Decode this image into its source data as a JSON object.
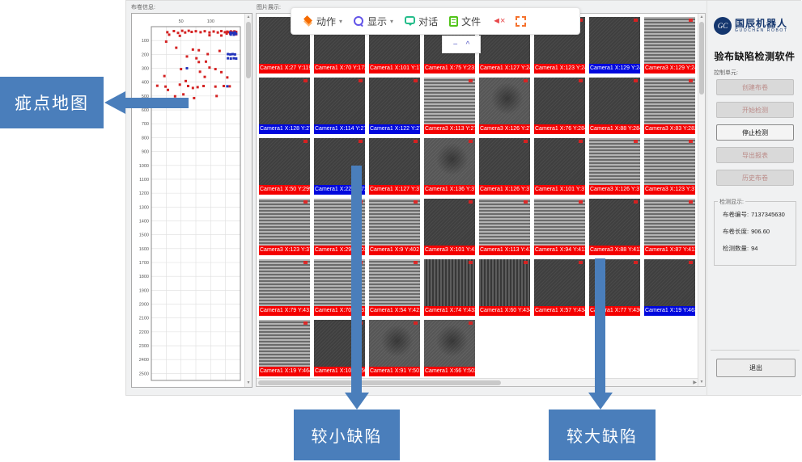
{
  "annotations": {
    "defect_map_label": "疵点地图",
    "small_defect_label": "较小缺陷",
    "large_defect_label": "较大缺陷",
    "box_color": "#4a7ebb"
  },
  "toolbar": {
    "items": [
      {
        "label": "动作",
        "icon": "layers-icon",
        "has_dropdown": true
      },
      {
        "label": "显示",
        "icon": "zoom-icon",
        "has_dropdown": true
      },
      {
        "label": "对话",
        "icon": "chat-icon"
      },
      {
        "label": "文件",
        "icon": "file-icon"
      },
      {
        "label": "",
        "icon": "mute-icon"
      },
      {
        "label": "",
        "icon": "fullscreen-icon"
      }
    ],
    "mute_glyph": "◄×",
    "caret": "▾",
    "collapse_popup": {
      "minimize": "−",
      "collapse": "^"
    }
  },
  "left_panel": {
    "title": "布卷信息:",
    "chart_data": {
      "type": "scatter",
      "title": "疵点地图 (defect map)",
      "xlabel": "",
      "ylabel": "",
      "xlim": [
        0,
        150
      ],
      "ylim": [
        0,
        2550
      ],
      "x_ticks": [
        50,
        100
      ],
      "y_tick_start": 100,
      "y_tick_step": 100,
      "y_tick_end": 2500,
      "grid": true,
      "legend_position": "none",
      "series": [
        {
          "name": "defect-point-red",
          "color": "#d42222",
          "points": [
            [
              27,
              40
            ],
            [
              38,
              32
            ],
            [
              45,
              45
            ],
            [
              52,
              30
            ],
            [
              57,
              42
            ],
            [
              63,
              30
            ],
            [
              68,
              38
            ],
            [
              75,
              33
            ],
            [
              83,
              40
            ],
            [
              90,
              33
            ],
            [
              98,
              42
            ],
            [
              105,
              35
            ],
            [
              112,
              42
            ],
            [
              118,
              32
            ],
            [
              124,
              40
            ],
            [
              128,
              36
            ],
            [
              131,
              40
            ],
            [
              134,
              34
            ],
            [
              137,
              40
            ],
            [
              140,
              34
            ],
            [
              143,
              38
            ],
            [
              127,
              50
            ],
            [
              133,
              52
            ],
            [
              139,
              52
            ],
            [
              143,
              55
            ],
            [
              30,
              58
            ],
            [
              48,
              66
            ],
            [
              98,
              62
            ],
            [
              118,
              64
            ],
            [
              25,
              108
            ],
            [
              42,
              152
            ],
            [
              70,
              165
            ],
            [
              80,
              170
            ],
            [
              115,
              175
            ],
            [
              95,
              198
            ],
            [
              60,
              215
            ],
            [
              76,
              228
            ],
            [
              80,
              255
            ],
            [
              92,
              252
            ],
            [
              98,
              295
            ],
            [
              50,
              306
            ],
            [
              82,
              325
            ],
            [
              108,
              306
            ],
            [
              118,
              328
            ],
            [
              22,
              356
            ],
            [
              90,
              362
            ],
            [
              128,
              366
            ],
            [
              58,
              392
            ],
            [
              10,
              426
            ],
            [
              24,
              432
            ],
            [
              48,
              418
            ],
            [
              62,
              428
            ],
            [
              70,
              442
            ],
            [
              78,
              436
            ],
            [
              88,
              428
            ],
            [
              108,
              432
            ],
            [
              122,
              428
            ],
            [
              132,
              430
            ],
            [
              28,
              456
            ],
            [
              54,
              488
            ],
            [
              40,
              502
            ],
            [
              72,
              515
            ],
            [
              110,
              500
            ]
          ]
        },
        {
          "name": "defect-point-blue",
          "color": "#2233bb",
          "points": [
            [
              133,
              42
            ],
            [
              137,
              45
            ],
            [
              141,
              42
            ],
            [
              134,
              57
            ],
            [
              139,
              58
            ],
            [
              143,
              52
            ],
            [
              60,
              300
            ],
            [
              129,
              198
            ],
            [
              133,
              200
            ],
            [
              137,
              198
            ],
            [
              141,
              200
            ],
            [
              129,
              228
            ],
            [
              134,
              230
            ],
            [
              139,
              228
            ],
            [
              143,
              230
            ],
            [
              128,
              430
            ]
          ]
        }
      ]
    }
  },
  "gallery": {
    "title": "图片展示:",
    "tiles": [
      {
        "label": "Camera1 X:27 Y:119",
        "color": "red",
        "texture": "dark"
      },
      {
        "label": "Camera1 X:70 Y:172",
        "color": "red",
        "texture": "dark"
      },
      {
        "label": "Camera1 X:101 Y:172",
        "color": "red",
        "texture": "dark"
      },
      {
        "label": "Camera1 X:75 Y:231",
        "color": "red",
        "texture": "dark"
      },
      {
        "label": "Camera1 X:127 Y:242",
        "color": "red",
        "texture": "dark"
      },
      {
        "label": "Camera1 X:123 Y:242",
        "color": "red",
        "texture": "dark"
      },
      {
        "label": "Camera1 X:129 Y:242",
        "color": "blue",
        "texture": "dark"
      },
      {
        "label": "Camera3 X:129 Y:242",
        "color": "red",
        "texture": "hstripe"
      },
      {
        "label": "Camera1 X:128 Y:276",
        "color": "blue",
        "texture": "dark"
      },
      {
        "label": "Camera1 X:114 Y:276",
        "color": "blue",
        "texture": "dark"
      },
      {
        "label": "Camera1 X:122 Y:276",
        "color": "blue",
        "texture": "dark"
      },
      {
        "label": "Camera3 X:113 Y:276",
        "color": "red",
        "texture": "hstripe"
      },
      {
        "label": "Camera3 X:126 Y:276",
        "color": "red",
        "texture": "mid"
      },
      {
        "label": "Camera1 X:76 Y:284",
        "color": "red",
        "texture": "dark"
      },
      {
        "label": "Camera1 X:88 Y:284",
        "color": "red",
        "texture": "dark"
      },
      {
        "label": "Camera3 X:83 Y:282",
        "color": "red",
        "texture": "hstripe"
      },
      {
        "label": "Camera1 X:50 Y:299",
        "color": "red",
        "texture": "dark"
      },
      {
        "label": "Camera1 X:22 Y:372",
        "color": "blue",
        "texture": "dark"
      },
      {
        "label": "Camera1 X:127 Y:373",
        "color": "red",
        "texture": "dark"
      },
      {
        "label": "Camera1 X:136 Y:373",
        "color": "red",
        "texture": "mid"
      },
      {
        "label": "Camera1 X:126 Y:373",
        "color": "red",
        "texture": "dark"
      },
      {
        "label": "Camera1 X:101 Y:373",
        "color": "red",
        "texture": "dark"
      },
      {
        "label": "Camera3 X:126 Y:371",
        "color": "red",
        "texture": "hstripe"
      },
      {
        "label": "Camera3 X:123 Y:371",
        "color": "red",
        "texture": "hstripe"
      },
      {
        "label": "Camera3 X:123 Y:375",
        "color": "red",
        "texture": "hstripe"
      },
      {
        "label": "Camera1 X:29 Y:402",
        "color": "red",
        "texture": "hstripe"
      },
      {
        "label": "Camera1 X:9 Y:402",
        "color": "red",
        "texture": "hstripe"
      },
      {
        "label": "Camera3 X:101 Y:411",
        "color": "red",
        "texture": "dark"
      },
      {
        "label": "Camera1 X:113 Y:411",
        "color": "red",
        "texture": "hstripe"
      },
      {
        "label": "Camera1 X:94 Y:411",
        "color": "red",
        "texture": "hstripe"
      },
      {
        "label": "Camera3 X:88 Y:411",
        "color": "red",
        "texture": "dark"
      },
      {
        "label": "Camera1 X:87 Y:411",
        "color": "red",
        "texture": "hstripe"
      },
      {
        "label": "Camera1 X:79 Y:431",
        "color": "red",
        "texture": "hstripe"
      },
      {
        "label": "Camera1 X:70 Y:431",
        "color": "red",
        "texture": "hstripe"
      },
      {
        "label": "Camera1 X:54 Y:421",
        "color": "red",
        "texture": "hstripe"
      },
      {
        "label": "Camera1 X:74 Y:433",
        "color": "red",
        "texture": "vstripe"
      },
      {
        "label": "Camera1 X:60 Y:434",
        "color": "red",
        "texture": "vstripe"
      },
      {
        "label": "Camera1 X:57 Y:434",
        "color": "red",
        "texture": "dark"
      },
      {
        "label": "Camera1 X:77 Y:436",
        "color": "red",
        "texture": "dark"
      },
      {
        "label": "Camera1 X:19 Y:463",
        "color": "blue",
        "texture": "dark"
      },
      {
        "label": "Camera1 X:19 Y:464",
        "color": "red",
        "texture": "hstripe"
      },
      {
        "label": "Camera1 X:103 Y:500",
        "color": "red",
        "texture": "dark"
      },
      {
        "label": "Camera1 X:91 Y:501",
        "color": "red",
        "texture": "mid"
      },
      {
        "label": "Camera1 X:66 Y:502",
        "color": "red",
        "texture": "mid"
      }
    ]
  },
  "right_panel": {
    "brand": {
      "badge": "GC",
      "name": "国辰机器人",
      "name_en": "GUOCHEN ROBOT"
    },
    "app_title": "验布缺陷检测软件",
    "control_section_label": "控制单元:",
    "buttons": [
      {
        "label": "创建布卷",
        "enabled": false
      },
      {
        "label": "开始检测",
        "enabled": false
      },
      {
        "label": "停止检测",
        "enabled": true
      },
      {
        "label": "导出报表",
        "enabled": false
      },
      {
        "label": "历史布卷",
        "enabled": false
      }
    ],
    "stats": {
      "title": "检测显示:",
      "fields": [
        {
          "label": "布卷编号:",
          "value": "7137345630"
        },
        {
          "label": "布卷长度:",
          "value": "906.60"
        },
        {
          "label": "检测数量:",
          "value": "94"
        }
      ]
    },
    "exit_button_label": "退出"
  }
}
